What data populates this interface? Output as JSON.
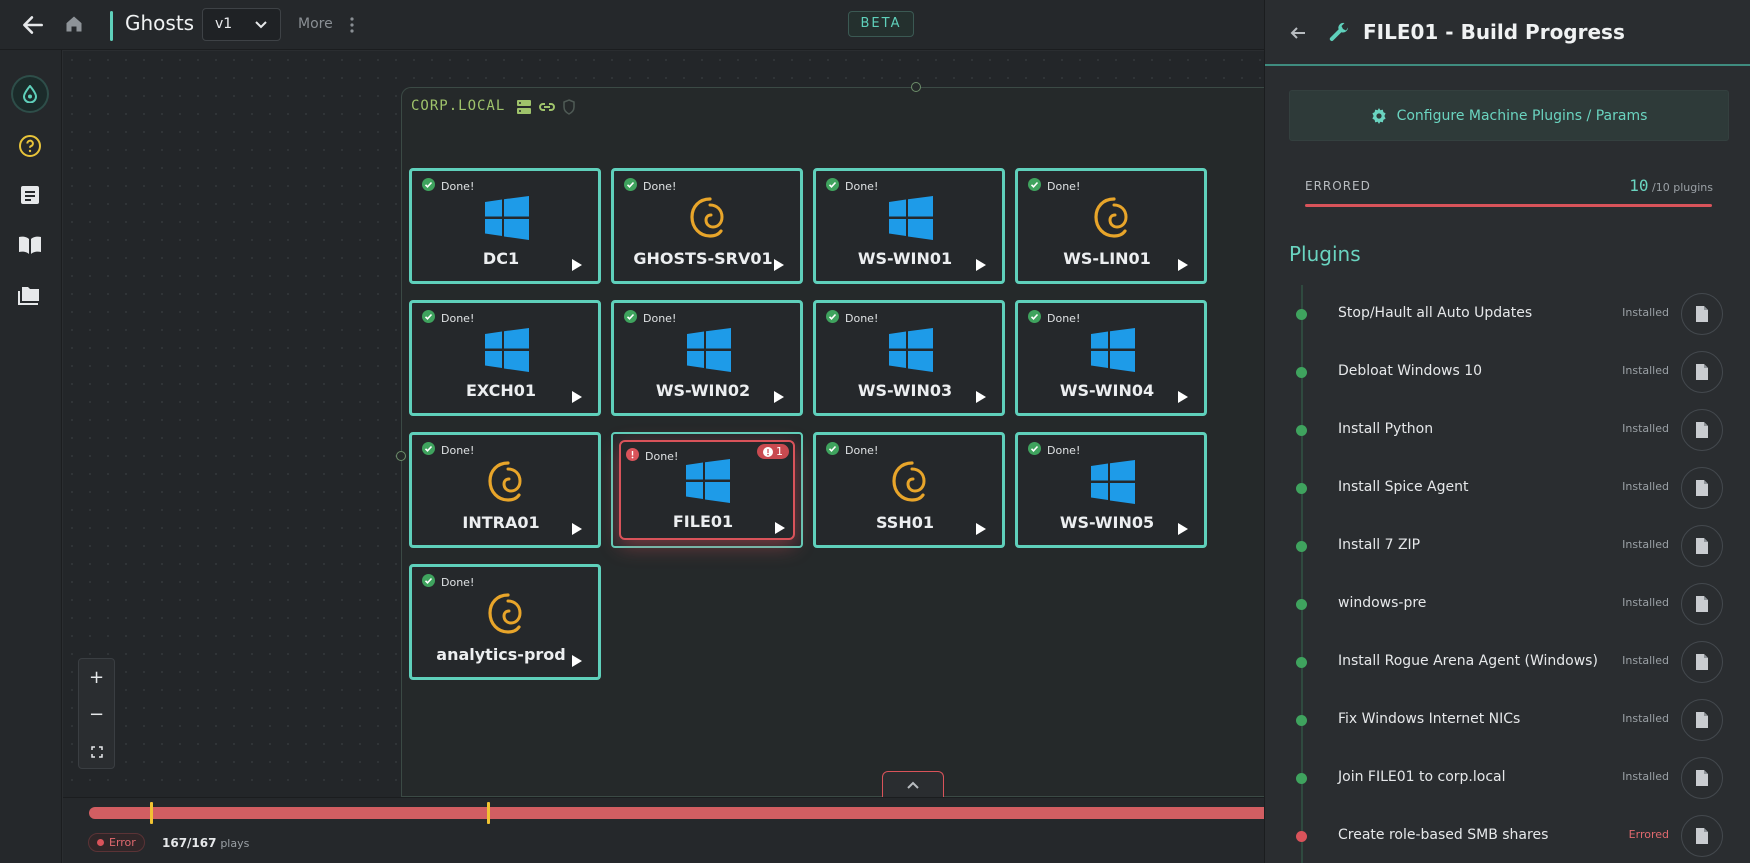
{
  "header": {
    "title": "Ghosts",
    "version": "v1",
    "more_label": "More",
    "beta_label": "BETA"
  },
  "sidebar": {
    "items": [
      {
        "icon": "logo-drop-icon"
      },
      {
        "icon": "help-icon"
      },
      {
        "icon": "notes-icon"
      },
      {
        "icon": "book-icon"
      },
      {
        "icon": "folders-icon"
      }
    ]
  },
  "canvas": {
    "domain_label": "CORP.LOCAL",
    "nodes": [
      {
        "name": "DC1",
        "status": "Done!",
        "os": "windows",
        "error": false
      },
      {
        "name": "GHOSTS-SRV01",
        "status": "Done!",
        "os": "debian",
        "error": false
      },
      {
        "name": "WS-WIN01",
        "status": "Done!",
        "os": "windows",
        "error": false
      },
      {
        "name": "WS-LIN01",
        "status": "Done!",
        "os": "debian",
        "error": false
      },
      {
        "name": "EXCH01",
        "status": "Done!",
        "os": "windows",
        "error": false
      },
      {
        "name": "WS-WIN02",
        "status": "Done!",
        "os": "windows",
        "error": false
      },
      {
        "name": "WS-WIN03",
        "status": "Done!",
        "os": "windows",
        "error": false
      },
      {
        "name": "WS-WIN04",
        "status": "Done!",
        "os": "windows",
        "error": false
      },
      {
        "name": "INTRA01",
        "status": "Done!",
        "os": "debian",
        "error": false
      },
      {
        "name": "FILE01",
        "status": "Done!",
        "os": "windows",
        "error": true,
        "error_count": "1"
      },
      {
        "name": "SSH01",
        "status": "Done!",
        "os": "debian",
        "error": false
      },
      {
        "name": "WS-WIN05",
        "status": "Done!",
        "os": "windows",
        "error": false
      },
      {
        "name": "analytics-prod",
        "status": "Done!",
        "os": "debian",
        "error": false
      }
    ]
  },
  "zoom": {
    "in": "+",
    "out": "−"
  },
  "timeline": {
    "error_label": "Error",
    "plays_count": "167/167",
    "plays_label": "plays"
  },
  "panel": {
    "title": "FILE01 - Build Progress",
    "configure_label": "Configure Machine Plugins / Params",
    "errored_label": "ERRORED",
    "errored_count": "10",
    "errored_total": "/10 plugins",
    "plugins_heading": "Plugins",
    "plugins": [
      {
        "name": "Stop/Hault all Auto Updates",
        "status": "Installed"
      },
      {
        "name": "Debloat Windows 10",
        "status": "Installed"
      },
      {
        "name": "Install Python",
        "status": "Installed"
      },
      {
        "name": "Install Spice Agent",
        "status": "Installed"
      },
      {
        "name": "Install 7 ZIP",
        "status": "Installed"
      },
      {
        "name": "windows-pre",
        "status": "Installed"
      },
      {
        "name": "Install Rogue Arena Agent (Windows)",
        "status": "Installed"
      },
      {
        "name": "Fix Windows Internet NICs",
        "status": "Installed"
      },
      {
        "name": "Join FILE01 to corp.local",
        "status": "Installed"
      },
      {
        "name": "Create role-based SMB shares",
        "status": "Errored"
      }
    ]
  },
  "colors": {
    "accent": "#5fd0bb",
    "error": "#d9535a",
    "installed_dot": "#3fa35e",
    "windows_blue": "#1e9be8",
    "debian_gold": "#e8a52a"
  }
}
